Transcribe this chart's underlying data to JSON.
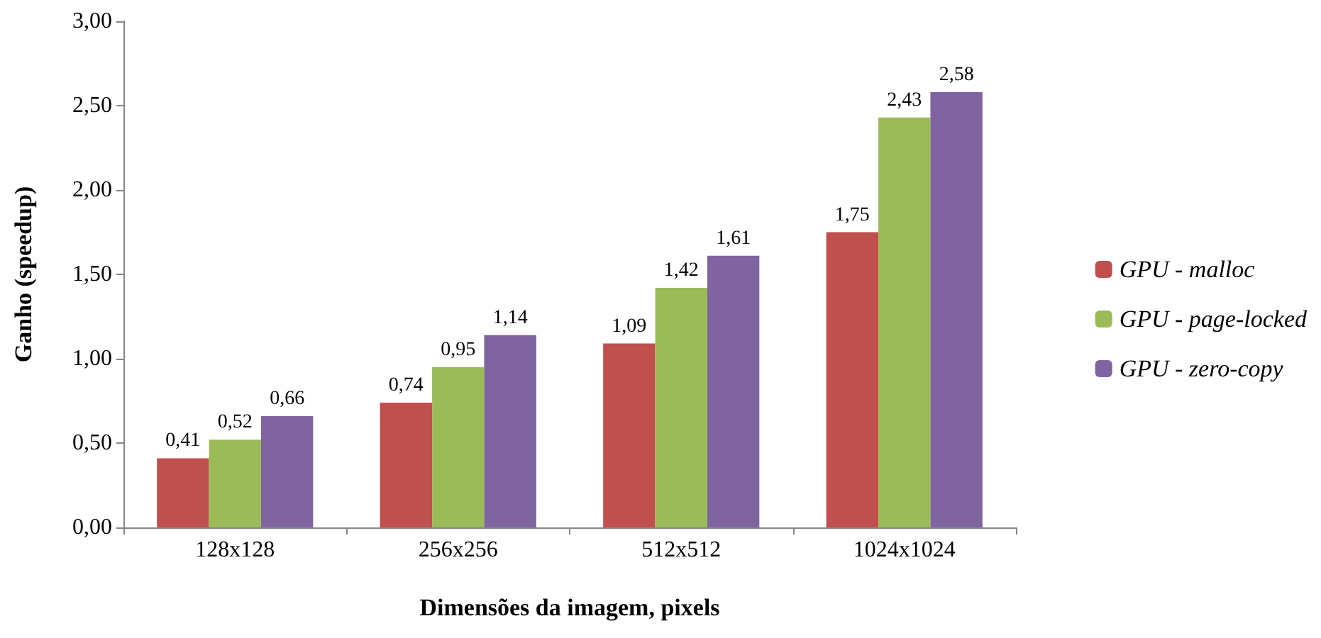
{
  "chart_data": {
    "type": "bar",
    "xlabel": "Dimensões da imagem, pixels",
    "ylabel": "Ganho (speedup)",
    "categories": [
      "128x128",
      "256x256",
      "512x512",
      "1024x1024"
    ],
    "series": [
      {
        "name": "GPU - malloc",
        "color": "#c0504d",
        "values": [
          0.41,
          0.74,
          1.09,
          1.75
        ],
        "value_labels": [
          "0,41",
          "0,74",
          "1,09",
          "1,75"
        ]
      },
      {
        "name": "GPU - page-locked",
        "color": "#9bbb59",
        "values": [
          0.52,
          0.95,
          1.42,
          2.43
        ],
        "value_labels": [
          "0,52",
          "0,95",
          "1,42",
          "2,43"
        ]
      },
      {
        "name": "GPU - zero-copy",
        "color": "#8064a2",
        "values": [
          0.66,
          1.14,
          1.61,
          2.58
        ],
        "value_labels": [
          "0,66",
          "1,14",
          "1,61",
          "2,58"
        ]
      }
    ],
    "ylim": [
      0,
      3
    ],
    "yticks": [
      {
        "value": 0,
        "label": "0,00"
      },
      {
        "value": 0.5,
        "label": "0,50"
      },
      {
        "value": 1,
        "label": "1,00"
      },
      {
        "value": 1.5,
        "label": "1,50"
      },
      {
        "value": 2,
        "label": "2,00"
      },
      {
        "value": 2.5,
        "label": "2,50"
      },
      {
        "value": 3,
        "label": "3,00"
      }
    ],
    "legend": "right",
    "grid": false
  }
}
